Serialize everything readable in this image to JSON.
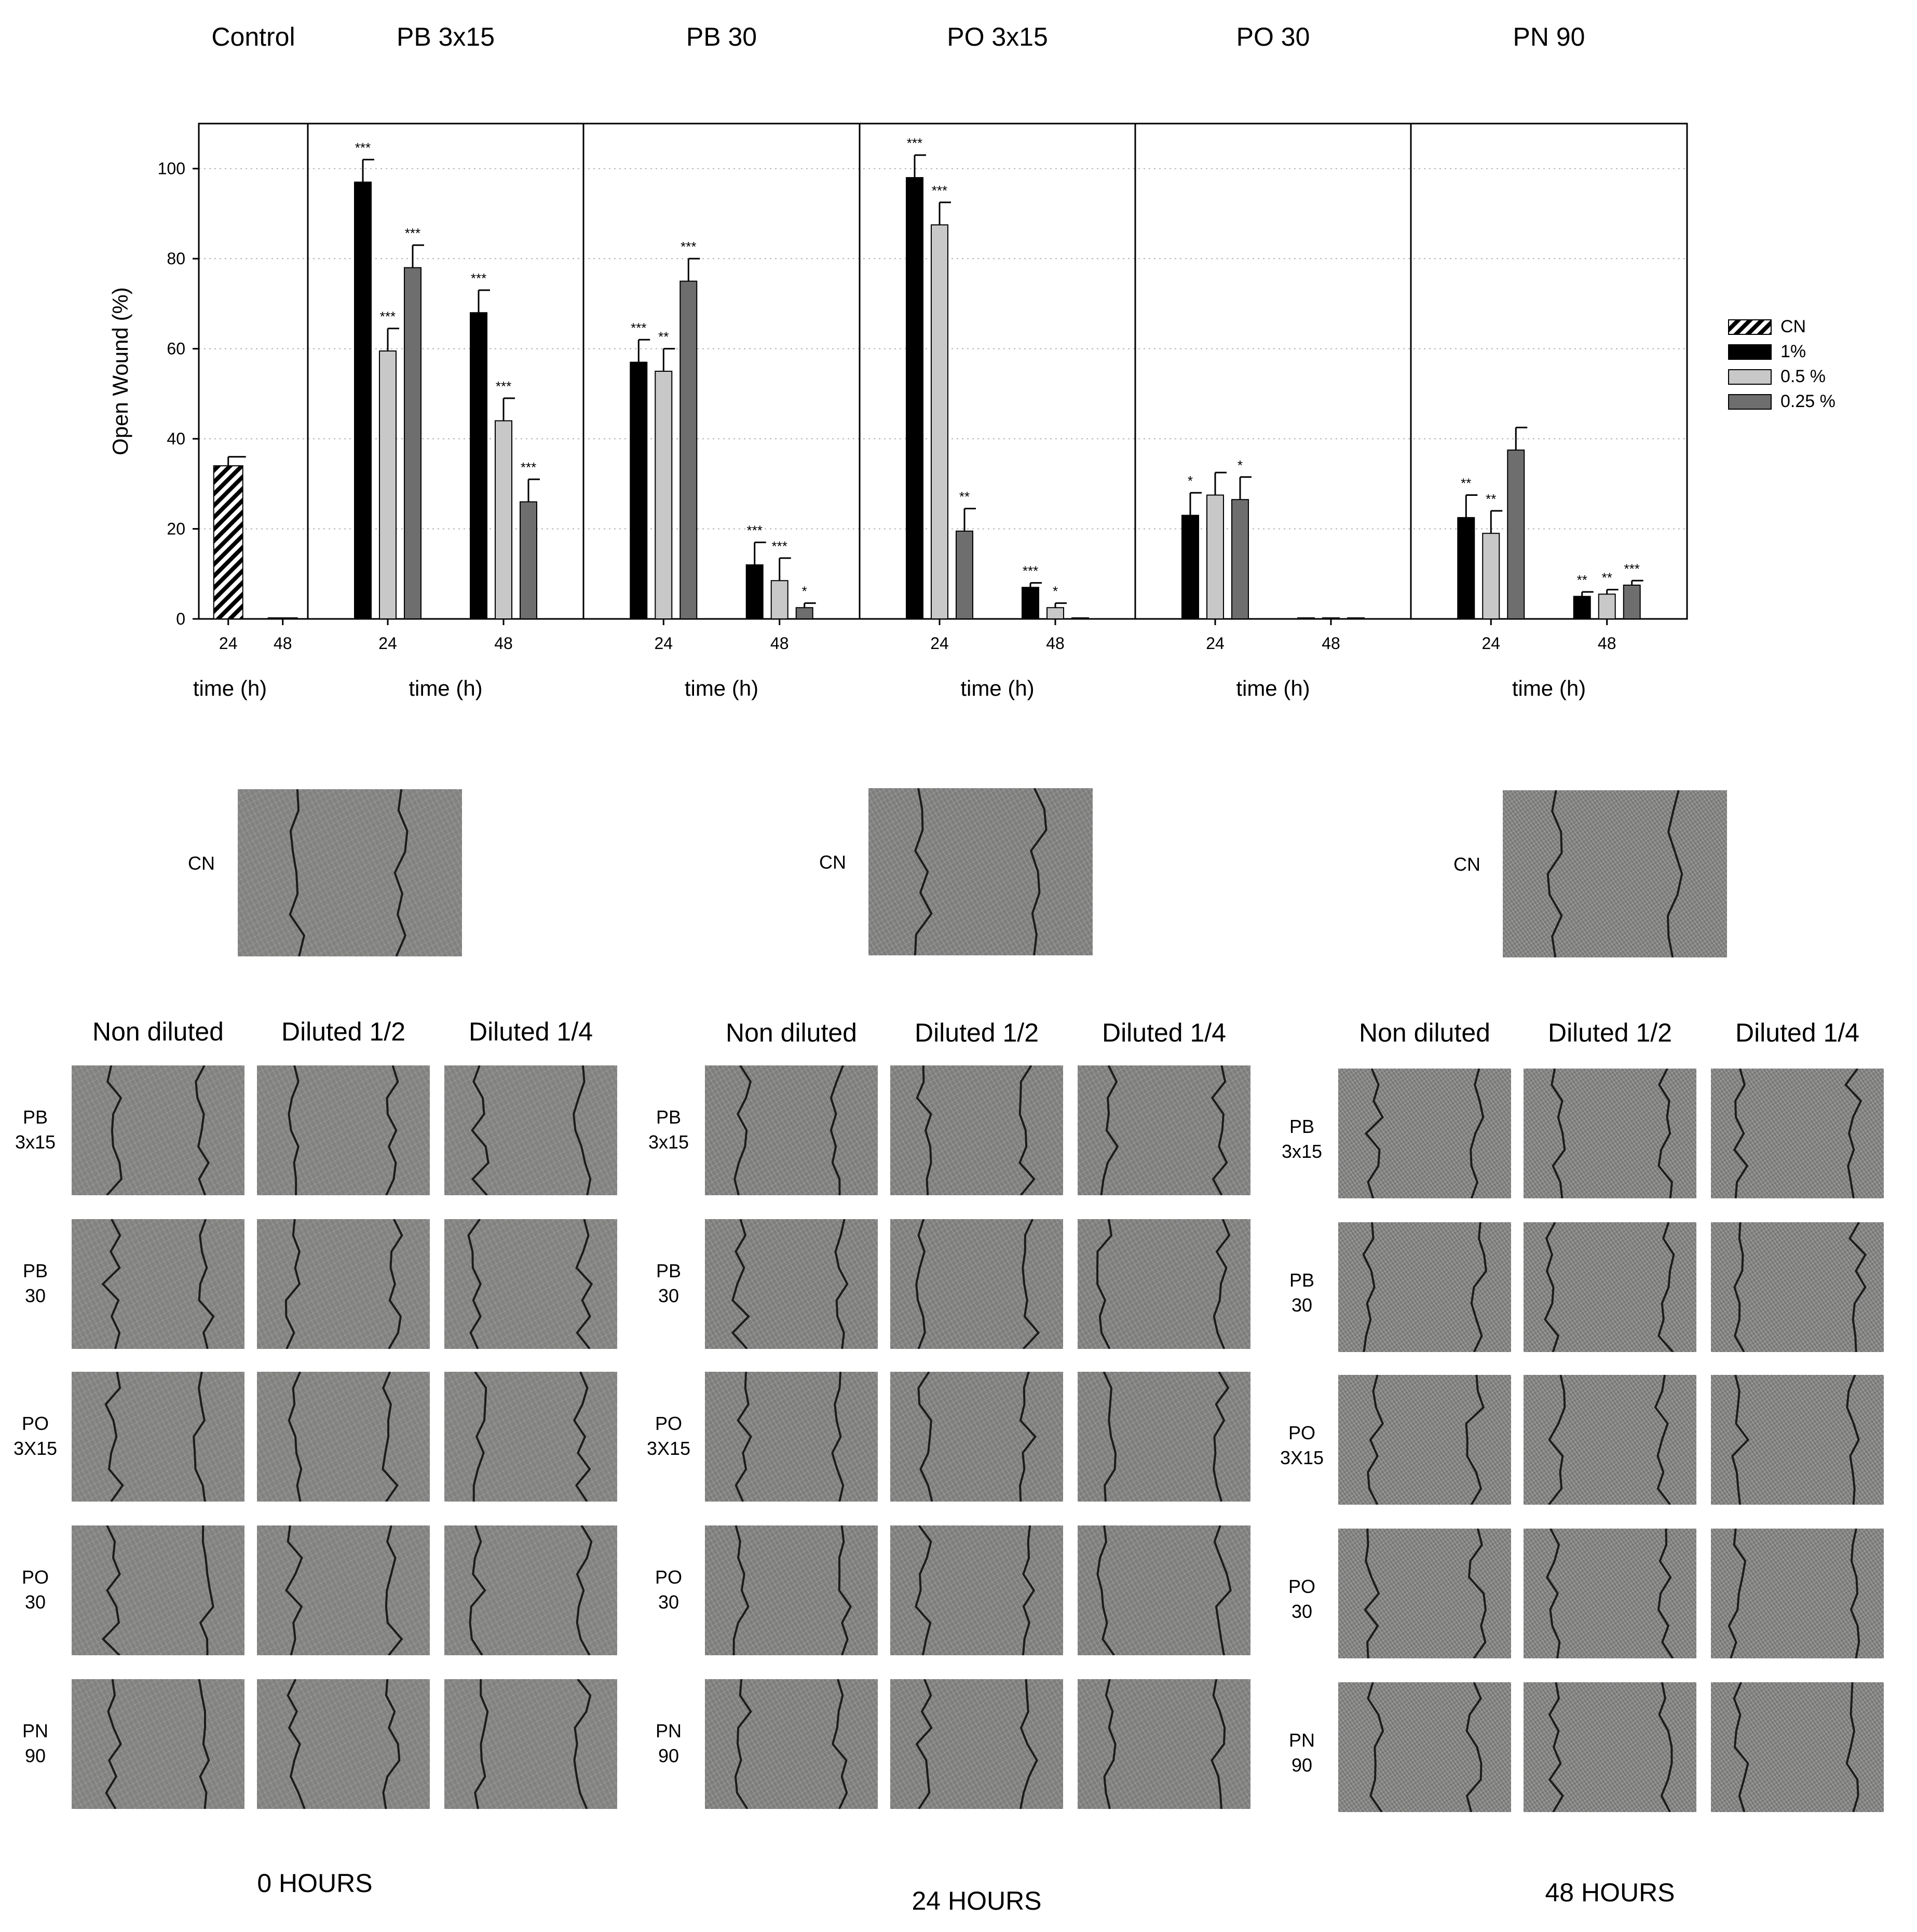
{
  "chart_data": {
    "type": "bar",
    "ylabel": "Open Wound (%)",
    "ylim": [
      0,
      110
    ],
    "yticks": [
      0,
      20,
      40,
      60,
      80,
      100
    ],
    "xlabel": "time (h)",
    "grid": "horizontal dotted",
    "legend_placement": "right",
    "legend": [
      {
        "name": "CN",
        "color": "#000000",
        "pattern": "hatch"
      },
      {
        "name": "1%",
        "color": "#000000"
      },
      {
        "name": "0.5 %",
        "color": "#c8c8c8"
      },
      {
        "name": "0.25 %",
        "color": "#6e6e6e"
      }
    ],
    "panels": [
      {
        "title": "Control",
        "categories": [
          "24",
          "48"
        ],
        "series": [
          {
            "name": "CN",
            "values": [
              34,
              0
            ],
            "errors": [
              2,
              0
            ],
            "sig": [
              "",
              ""
            ]
          }
        ]
      },
      {
        "title": "PB 3x15",
        "categories": [
          "24",
          "48"
        ],
        "series": [
          {
            "name": "1%",
            "values": [
              97,
              68
            ],
            "errors": [
              5,
              5
            ],
            "sig": [
              "***",
              "***"
            ]
          },
          {
            "name": "0.5 %",
            "values": [
              59.5,
              44
            ],
            "errors": [
              5,
              5
            ],
            "sig": [
              "***",
              "***"
            ]
          },
          {
            "name": "0.25 %",
            "values": [
              78,
              26
            ],
            "errors": [
              5,
              5
            ],
            "sig": [
              "***",
              "***"
            ]
          }
        ]
      },
      {
        "title": "PB 30",
        "categories": [
          "24",
          "48"
        ],
        "series": [
          {
            "name": "1%",
            "values": [
              57,
              12
            ],
            "errors": [
              5,
              5
            ],
            "sig": [
              "***",
              "***"
            ]
          },
          {
            "name": "0.5 %",
            "values": [
              55,
              8.5
            ],
            "errors": [
              5,
              5
            ],
            "sig": [
              "**",
              "***"
            ]
          },
          {
            "name": "0.25 %",
            "values": [
              75,
              2.5
            ],
            "errors": [
              5,
              1
            ],
            "sig": [
              "***",
              "*"
            ]
          }
        ]
      },
      {
        "title": "PO 3x15",
        "categories": [
          "24",
          "48"
        ],
        "series": [
          {
            "name": "1%",
            "values": [
              98,
              7
            ],
            "errors": [
              5,
              1
            ],
            "sig": [
              "***",
              "***"
            ]
          },
          {
            "name": "0.5 %",
            "values": [
              87.5,
              2.5
            ],
            "errors": [
              5,
              1
            ],
            "sig": [
              "***",
              "*"
            ]
          },
          {
            "name": "0.25 %",
            "values": [
              19.5,
              0
            ],
            "errors": [
              5,
              0
            ],
            "sig": [
              "**",
              ""
            ]
          }
        ]
      },
      {
        "title": "PO 30",
        "categories": [
          "24",
          "48"
        ],
        "series": [
          {
            "name": "1%",
            "values": [
              23,
              0
            ],
            "errors": [
              5,
              0
            ],
            "sig": [
              "*",
              ""
            ]
          },
          {
            "name": "0.5 %",
            "values": [
              27.5,
              0
            ],
            "errors": [
              5,
              0
            ],
            "sig": [
              "",
              ""
            ]
          },
          {
            "name": "0.25 %",
            "values": [
              26.5,
              0
            ],
            "errors": [
              5,
              0
            ],
            "sig": [
              "*",
              ""
            ]
          }
        ]
      },
      {
        "title": "PN 90",
        "categories": [
          "24",
          "48"
        ],
        "series": [
          {
            "name": "1%",
            "values": [
              22.5,
              5
            ],
            "errors": [
              5,
              1
            ],
            "sig": [
              "**",
              "**"
            ]
          },
          {
            "name": "0.5 %",
            "values": [
              19,
              5.5
            ],
            "errors": [
              5,
              1
            ],
            "sig": [
              "**",
              "**"
            ]
          },
          {
            "name": "0.25 %",
            "values": [
              37.5,
              7.5
            ],
            "errors": [
              5,
              1
            ],
            "sig": [
              "",
              "***"
            ]
          }
        ]
      }
    ]
  },
  "micrographs": {
    "control_label": "CN",
    "column_headers": [
      "Non diluted",
      "Diluted 1/2",
      "Diluted 1/4"
    ],
    "groups": [
      {
        "time_label": "0 HOURS",
        "row_labels": [
          "PB\n3x15",
          "PB\n30",
          "PO\n3X15",
          "PO\n30",
          "PN\n90"
        ]
      },
      {
        "time_label": "24 HOURS",
        "row_labels": [
          "PB\n3x15",
          "PB\n30",
          "PO\n3X15",
          "PO\n30",
          "PN\n90"
        ]
      },
      {
        "time_label": "48 HOURS",
        "row_labels": [
          "PB\n3x15",
          "PB\n30",
          "PO\n3X15",
          "PO\n30",
          "PN\n90"
        ]
      }
    ]
  },
  "colors": {
    "bar_1pct": "#000000",
    "bar_05pct": "#c8c8c8",
    "bar_025pct": "#6e6e6e",
    "micrograph_bg": "#8d8e8c"
  }
}
